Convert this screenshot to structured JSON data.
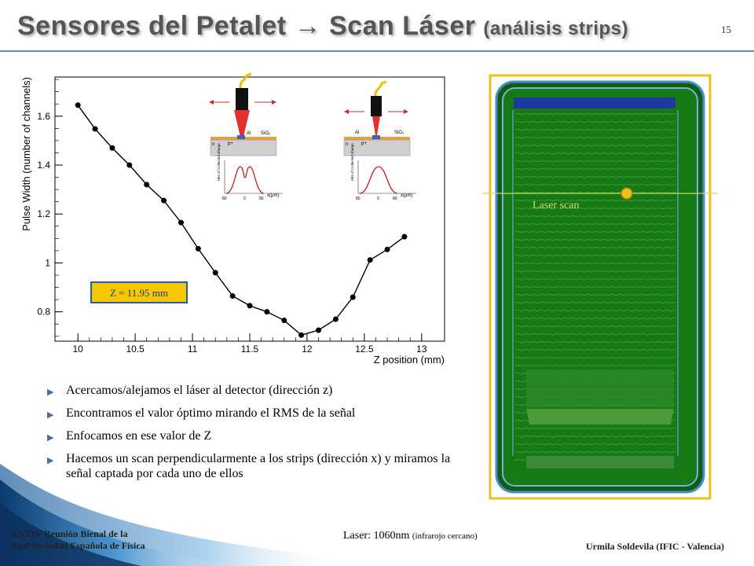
{
  "slide": {
    "title_main": "Sensores del Petalet",
    "title_arrow": "→",
    "title_scan": "Scan Láser",
    "title_sub": "(análisis strips)",
    "number": "15"
  },
  "chart_data": {
    "type": "line",
    "xlabel": "Z position (mm)",
    "ylabel": "Pulse Width (number of channels)",
    "xlim": [
      9.8,
      13.2
    ],
    "ylim": [
      0.68,
      1.76
    ],
    "x_ticks": [
      10,
      10.5,
      11,
      11.5,
      12,
      12.5,
      13
    ],
    "y_ticks": [
      0.8,
      1,
      1.2,
      1.4,
      1.6
    ],
    "x_tick_labels": [
      "10",
      "10.5",
      "11",
      "11.5",
      "12",
      "12.5",
      "13"
    ],
    "y_tick_labels": [
      "0.8",
      "1",
      "1.2",
      "1.4",
      "1.6"
    ],
    "grid": false,
    "series": [
      {
        "x": [
          10.0,
          10.15,
          10.3,
          10.45,
          10.6,
          10.75,
          10.9,
          11.05,
          11.2,
          11.35,
          11.5,
          11.65,
          11.8,
          11.95,
          12.1,
          12.25,
          12.4,
          12.55,
          12.7,
          12.85
        ],
        "values": [
          1.645,
          1.548,
          1.47,
          1.4,
          1.32,
          1.255,
          1.165,
          1.058,
          0.96,
          0.865,
          0.825,
          0.8,
          0.765,
          0.705,
          0.725,
          0.77,
          0.86,
          1.012,
          1.055,
          1.107
        ]
      }
    ],
    "annotation": "Z = 11.95 mm",
    "inset_labels": {
      "al": "Al",
      "sio2": "SiO₂",
      "n": "n",
      "p": "p+",
      "hist_ylabel": "Hits of Collected charge",
      "hist_xlabel": "x(μm)",
      "hist_ticks": [
        "80",
        "0",
        "80"
      ]
    }
  },
  "bullets": [
    "Acercamos/alejamos el láser al detector (dirección z)",
    "Encontramos el valor óptimo mirando el RMS de la señal",
    "Enfocamos en ese valor de Z",
    "Hacemos un scan perpendicularmente a los strips (dirección x) y miramos la señal captada por cada uno de ellos"
  ],
  "sensor": {
    "label": "Laser scan",
    "colors": {
      "green": "#157a15",
      "blue": "#1a3aa0",
      "frame": "#e8c020",
      "line": "#d8d860"
    }
  },
  "laser_note": {
    "label": "Laser",
    "value": ": 1060nm",
    "detail": "(infrarojo cercano)"
  },
  "footer": {
    "line1": "XXXIV Reunión Bienal de la",
    "line2": "Real Sociedad Española de Física",
    "author": "Urmila Soldevila (IFIC - Valencia)"
  },
  "colors": {
    "accent": "#5b8fbf",
    "annotation_bg": "#f5c800",
    "annotation_border": "#2a5aa8",
    "marker": "#000000"
  }
}
